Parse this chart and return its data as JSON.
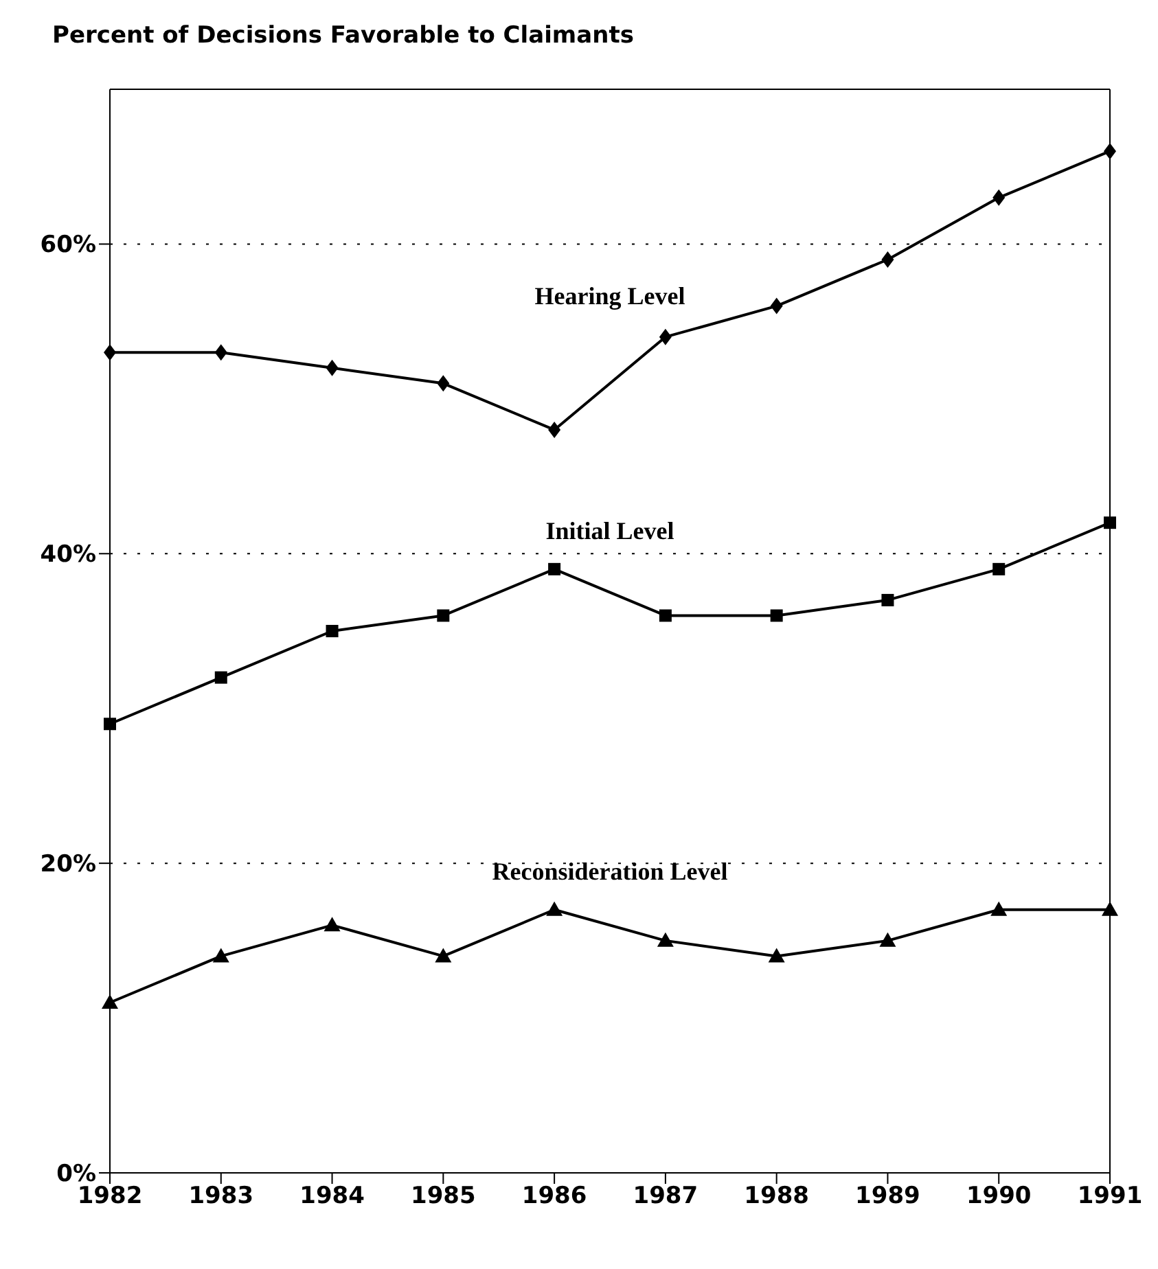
{
  "chart_data": {
    "type": "line",
    "title": "Percent of Decisions Favorable to Claimants",
    "categories": [
      "1982",
      "1983",
      "1984",
      "1985",
      "1986",
      "1987",
      "1988",
      "1989",
      "1990",
      "1991"
    ],
    "series": [
      {
        "name": "Hearing Level",
        "color": "#000000",
        "marker": "diamond",
        "values": [
          53,
          53,
          52,
          51,
          48,
          54,
          56,
          59,
          63,
          66
        ]
      },
      {
        "name": "Initial Level",
        "color": "#000000",
        "marker": "square",
        "values": [
          29,
          32,
          35,
          36,
          39,
          36,
          36,
          37,
          39,
          42
        ]
      },
      {
        "name": "Reconsideration Level",
        "color": "#000000",
        "marker": "triangle",
        "values": [
          11,
          14,
          16,
          14,
          17,
          15,
          14,
          15,
          17,
          17
        ]
      }
    ],
    "ylim": [
      0,
      70
    ],
    "yticks": [
      {
        "value": 0,
        "label": "0%"
      },
      {
        "value": 20,
        "label": "20%"
      },
      {
        "value": 40,
        "label": "40%"
      },
      {
        "value": 60,
        "label": "60%"
      }
    ],
    "grid": "y",
    "line_style": "solid",
    "legend": false
  }
}
